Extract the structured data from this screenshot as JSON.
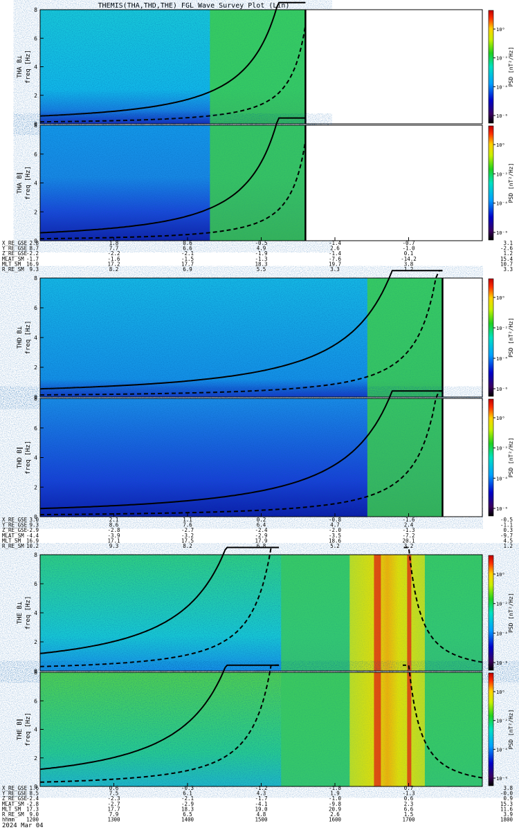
{
  "chart_data": {
    "type": "heatmap",
    "title": "THEMIS(THA,THD,THE) FGL Wave Survey Plot (Lin)",
    "colorbar_ylabel": "PSD [nT²/Hz]",
    "colorbar_ticks": [
      "10⁰",
      "10⁻²",
      "10⁻⁴",
      "10⁻⁶"
    ],
    "freq_ticks": [
      "0",
      "2",
      "4",
      "6",
      "8"
    ],
    "time_label_row": "hhmm",
    "date_label": "2024 Mar 04",
    "groups": [
      {
        "probe": "THA",
        "panels": [
          {
            "ylabel": "THA B⊥",
            "yunit": "freq [Hz]"
          },
          {
            "ylabel": "THA B∥",
            "yunit": "freq [Hz]"
          }
        ],
        "ylim": [
          0,
          8
        ],
        "data_end_fraction": 0.6,
        "ephem_rows": [
          {
            "name": "X_RE_GSE",
            "values": [
              "2.8",
              "1.8",
              "0.6",
              "-0.5",
              "-1.4",
              "-0.7",
              "3.1"
            ]
          },
          {
            "name": "Y_RE_GSE",
            "values": [
              "8.7",
              "7.7",
              "6.6",
              "4.9",
              "2.6",
              "-1.0",
              "-2.6"
            ]
          },
          {
            "name": "Z_RE_GSE",
            "values": [
              "-2.2",
              "-2.2",
              "-2.1",
              "-1.9",
              "-1.4",
              "0.1",
              "1.2"
            ]
          },
          {
            "name": "MLAT_SM",
            "values": [
              "-1.7",
              "-1.6",
              "-1.5",
              "-1.3",
              "-7.6",
              "-14.2",
              "15.4"
            ]
          },
          {
            "name": "MLT_SM",
            "values": [
              "16.9",
              "17.2",
              "17.7",
              "18.3",
              "19.7",
              "3.8",
              "10.7"
            ]
          },
          {
            "name": "R_RE_SM",
            "values": [
              "9.3",
              "8.2",
              "6.9",
              "5.5",
              "3.3",
              "1.2",
              "3.3"
            ]
          }
        ]
      },
      {
        "probe": "THD",
        "panels": [
          {
            "ylabel": "THD B⊥",
            "yunit": "freq [Hz]"
          },
          {
            "ylabel": "THD B∥",
            "yunit": "freq [Hz]"
          }
        ],
        "ylim": [
          0,
          8
        ],
        "data_end_fraction": 0.91,
        "ephem_rows": [
          {
            "name": "X_RE_GSE",
            "values": [
              "3.0",
              "2.1",
              "1.1",
              "0.2",
              "-0.8",
              "-1.6",
              "-0.5"
            ]
          },
          {
            "name": "Y_RE_GSE",
            "values": [
              "9.3",
              "8.6",
              "7.6",
              "6.4",
              "4.7",
              "2.4",
              "-1.1"
            ]
          },
          {
            "name": "Z_RE_GSE",
            "values": [
              "-2.9",
              "-2.8",
              "-2.7",
              "-2.4",
              "-2.0",
              "-1.3",
              "0.3"
            ]
          },
          {
            "name": "MLAT_SM",
            "values": [
              "-4.4",
              "-3.9",
              "-3.2",
              "-2.9",
              "-3.5",
              "-7.2",
              "-9.7"
            ]
          },
          {
            "name": "MLT_SM",
            "values": [
              "16.9",
              "17.1",
              "17.5",
              "17.9",
              "18.6",
              "20.1",
              "4.5"
            ]
          },
          {
            "name": "R_RE_SM",
            "values": [
              "10.2",
              "9.3",
              "8.2",
              "6.8",
              "5.2",
              "3.2",
              "1.2"
            ]
          }
        ]
      },
      {
        "probe": "THE",
        "panels": [
          {
            "ylabel": "THE B⊥",
            "yunit": "freq [Hz]"
          },
          {
            "ylabel": "THE B∥",
            "yunit": "freq [Hz]"
          }
        ],
        "ylim": [
          0,
          8
        ],
        "data_end_fraction": 1.0,
        "ephem_rows": [
          {
            "name": "X_RE_GSE",
            "values": [
              "1.6",
              "0.6",
              "-0.3",
              "-1.2",
              "-1.8",
              "0.7",
              "3.8"
            ]
          },
          {
            "name": "Y_RE_GSE",
            "values": [
              "8.5",
              "7.5",
              "6.1",
              "4.3",
              "1.9",
              "-1.3",
              "-0.0"
            ]
          },
          {
            "name": "Z_RE_GSE",
            "values": [
              "-2.4",
              "-2.3",
              "-2.1",
              "-1.7",
              "-1.0",
              "0.6",
              "0.9"
            ]
          },
          {
            "name": "MLAT_SM",
            "values": [
              "-2.8",
              "-2.7",
              "-2.9",
              "-4.1",
              "-9.8",
              "2.3",
              "15.3"
            ]
          },
          {
            "name": "MLT_SM",
            "values": [
              "17.3",
              "17.7",
              "18.3",
              "19.0",
              "20.9",
              "6.6",
              "11.6"
            ]
          },
          {
            "name": "R_RE_SM",
            "values": [
              "9.0",
              "7.9",
              "6.5",
              "4.8",
              "2.6",
              "1.5",
              "3.9"
            ]
          },
          {
            "name": "hhmm",
            "values": [
              "1200",
              "1300",
              "1400",
              "1500",
              "1600",
              "1700",
              "1800"
            ]
          }
        ]
      }
    ]
  }
}
